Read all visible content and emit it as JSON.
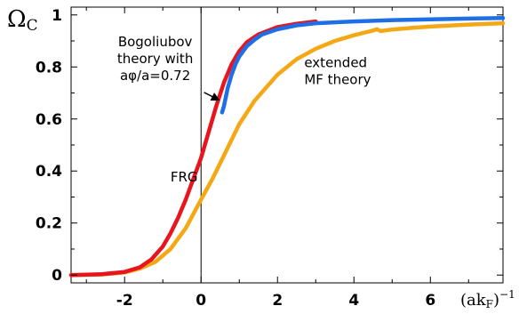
{
  "chart_data": {
    "type": "line",
    "title": "",
    "ylabel": "Ω",
    "ylabel_sub": "C",
    "xlabel": "(ak",
    "xlabel_sub": "F",
    "xlabel_end": ")",
    "xlabel_sup": "−1",
    "xlim": [
      -3.4,
      7.9
    ],
    "ylim": [
      -0.03,
      1.03
    ],
    "xticks": [
      -2,
      0,
      2,
      4,
      6
    ],
    "xtick_labels": [
      "-2",
      "0",
      "2",
      "4",
      "6"
    ],
    "yticks": [
      0,
      0.2,
      0.4,
      0.6,
      0.8,
      1
    ],
    "ytick_labels": [
      "0",
      "0.2",
      "0.4",
      "0.6",
      "0.8",
      "1"
    ],
    "grid": false,
    "legend": "none",
    "series": [
      {
        "color": "#e8141e",
        "x": [
          -3.4,
          -2.6,
          -2.0,
          -1.6,
          -1.3,
          -1.0,
          -0.8,
          -0.6,
          -0.4,
          -0.2,
          0.0,
          0.2,
          0.4,
          0.6,
          0.8,
          1.0,
          1.2,
          1.5,
          2.0,
          2.5,
          3.0
        ],
        "y": [
          0.0,
          0.003,
          0.012,
          0.03,
          0.06,
          0.11,
          0.16,
          0.22,
          0.29,
          0.37,
          0.45,
          0.55,
          0.65,
          0.74,
          0.81,
          0.86,
          0.895,
          0.925,
          0.953,
          0.966,
          0.975
        ]
      },
      {
        "color": "#1e6fe6",
        "x": [
          0.55,
          0.6,
          0.7,
          0.8,
          0.9,
          1.0,
          1.2,
          1.4,
          1.6,
          2.0,
          2.5,
          3.0,
          4.0,
          5.0,
          6.0,
          7.0,
          7.9
        ],
        "y": [
          0.625,
          0.65,
          0.72,
          0.77,
          0.81,
          0.84,
          0.88,
          0.905,
          0.925,
          0.945,
          0.96,
          0.968,
          0.975,
          0.98,
          0.983,
          0.986,
          0.988
        ]
      },
      {
        "color": "#f5a816",
        "x": [
          -3.4,
          -2.6,
          -2.0,
          -1.6,
          -1.2,
          -0.8,
          -0.4,
          0.0,
          0.3,
          0.6,
          1.0,
          1.4,
          2.0,
          2.5,
          3.0,
          3.5,
          4.0,
          4.5,
          4.6,
          4.7,
          5.0,
          5.5,
          6.0,
          7.0,
          7.9
        ],
        "y": [
          0.0,
          0.002,
          0.01,
          0.025,
          0.05,
          0.1,
          0.18,
          0.29,
          0.37,
          0.46,
          0.58,
          0.67,
          0.77,
          0.83,
          0.87,
          0.9,
          0.922,
          0.94,
          0.945,
          0.938,
          0.944,
          0.95,
          0.955,
          0.963,
          0.968
        ]
      }
    ],
    "annotations": [
      {
        "id": "bogoliubov",
        "lines": [
          "Bogoliubov",
          "theory with",
          "aφ/a=0.72"
        ],
        "x": -1.2,
        "y": 0.88,
        "arrow_to": [
          0.55,
          0.66
        ]
      },
      {
        "id": "extended",
        "lines": [
          "extended",
          "MF theory"
        ],
        "x": 2.7,
        "y": 0.8
      },
      {
        "id": "frg",
        "lines": [
          "FRG"
        ],
        "x": -0.8,
        "y": 0.36
      }
    ]
  }
}
